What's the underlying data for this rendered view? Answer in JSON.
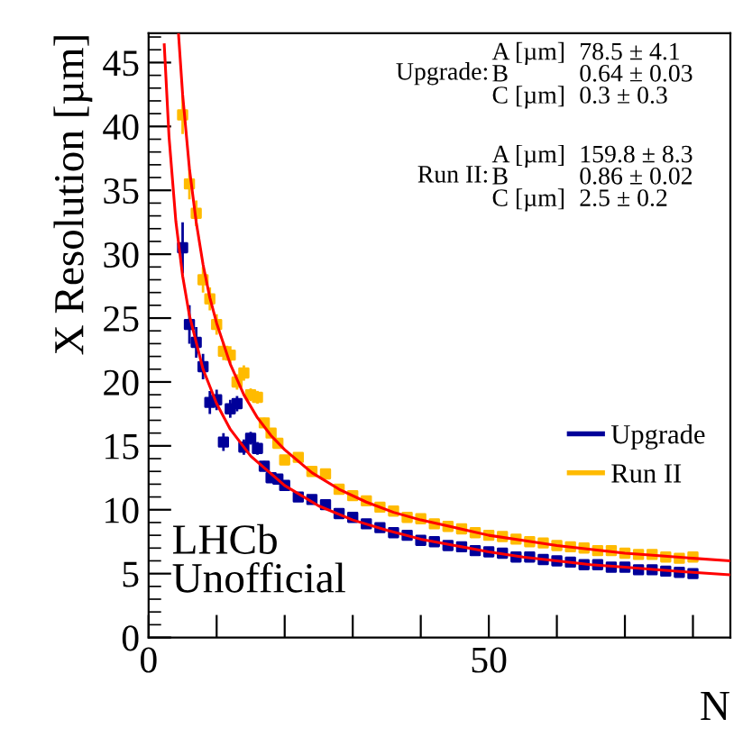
{
  "chart_data": {
    "type": "scatter",
    "xlabel": "N",
    "ylabel": "X Resolution [µm]",
    "xlim": [
      0,
      85.5
    ],
    "ylim": [
      0,
      47.3
    ],
    "xticks": [
      0,
      {
        "value": 10,
        "label": null
      },
      {
        "value": 20,
        "label": null
      },
      {
        "value": 30,
        "label": null
      },
      {
        "value": 40,
        "label": null
      },
      50,
      {
        "value": 60,
        "label": null
      },
      {
        "value": 70,
        "label": null
      },
      {
        "value": 80,
        "label": null
      }
    ],
    "yticks": [
      0,
      5,
      10,
      15,
      20,
      25,
      30,
      35,
      40,
      45
    ],
    "grid": false,
    "legend": "right",
    "marker": "square",
    "series": [
      {
        "name": "Upgrade",
        "color": "#000099",
        "x": [
          5,
          6,
          7,
          8,
          9,
          10,
          11,
          12,
          13,
          14,
          15,
          16,
          17,
          18,
          19,
          20,
          22,
          24,
          26,
          28,
          30,
          32,
          34,
          36,
          38,
          40,
          42,
          44,
          46,
          48,
          50,
          52,
          54,
          56,
          58,
          60,
          62,
          64,
          66,
          68,
          70,
          72,
          74,
          76,
          78,
          80
        ],
        "values": [
          30.5,
          24.5,
          23.1,
          21.2,
          18.4,
          18.6,
          15.3,
          17.9,
          18.3,
          14.9,
          15.6,
          14.8,
          13.4,
          12.5,
          12.4,
          11.9,
          11.0,
          10.8,
          10.4,
          9.7,
          9.4,
          8.9,
          8.6,
          8.2,
          8.0,
          7.6,
          7.5,
          7.2,
          7.1,
          6.8,
          6.7,
          6.6,
          6.3,
          6.3,
          6.1,
          6.0,
          5.9,
          5.7,
          5.7,
          5.5,
          5.5,
          5.3,
          5.3,
          5.2,
          5.1,
          5.0
        ],
        "errors": [
          2.0,
          1.5,
          1.2,
          1.0,
          0.9,
          0.8,
          0.7,
          0.7,
          0.6,
          0.6,
          0.5,
          0.5,
          0.4,
          0.4,
          0.4,
          0.3,
          0.3,
          0.3,
          0.3,
          0.2,
          0.2,
          0.2,
          0.2,
          0.2,
          0.2,
          0.2,
          0.2,
          0.2,
          0.2,
          0.2,
          0.2,
          0.2,
          0.2,
          0.2,
          0.2,
          0.2,
          0.2,
          0.2,
          0.2,
          0.2,
          0.2,
          0.2,
          0.2,
          0.2,
          0.2,
          0.2
        ]
      },
      {
        "name": "Run II",
        "color": "#ffbb00",
        "x": [
          5,
          6,
          7,
          8,
          9,
          10,
          11,
          12,
          13,
          14,
          15,
          16,
          17,
          18,
          19,
          20,
          22,
          24,
          26,
          28,
          30,
          32,
          34,
          36,
          38,
          40,
          42,
          44,
          46,
          48,
          50,
          52,
          54,
          56,
          58,
          60,
          62,
          64,
          66,
          68,
          70,
          72,
          74,
          76,
          78,
          80
        ],
        "values": [
          40.9,
          35.5,
          33.2,
          28.0,
          26.5,
          24.5,
          22.4,
          22.1,
          20.0,
          20.7,
          19.0,
          18.8,
          16.8,
          16.0,
          15.2,
          13.9,
          14.1,
          13.0,
          12.8,
          11.6,
          11.1,
          10.7,
          10.2,
          9.9,
          9.4,
          9.3,
          8.9,
          8.7,
          8.5,
          8.2,
          8.0,
          7.9,
          7.7,
          7.5,
          7.4,
          7.2,
          7.1,
          7.0,
          6.8,
          6.8,
          6.6,
          6.5,
          6.5,
          6.3,
          6.2,
          6.3
        ],
        "errors": [
          1.5,
          1.2,
          1.0,
          1.0,
          0.9,
          0.8,
          0.7,
          0.7,
          0.6,
          0.6,
          0.5,
          0.5,
          0.4,
          0.4,
          0.4,
          0.3,
          0.3,
          0.3,
          0.3,
          0.2,
          0.2,
          0.2,
          0.2,
          0.2,
          0.2,
          0.2,
          0.2,
          0.2,
          0.2,
          0.2,
          0.2,
          0.2,
          0.2,
          0.2,
          0.2,
          0.2,
          0.2,
          0.2,
          0.2,
          0.2,
          0.2,
          0.2,
          0.2,
          0.2,
          0.2,
          0.2
        ]
      },
      {
        "type": "line",
        "color": "#ff0000",
        "marker": "none",
        "x": [
          2.3,
          3,
          4,
          5,
          6,
          8,
          10,
          12,
          15,
          20,
          25,
          30,
          35,
          40,
          45,
          50,
          55,
          60,
          65,
          70,
          75,
          80,
          85.5
        ],
        "values": [
          46.4,
          39.2,
          32.6,
          28.3,
          25.2,
          21.0,
          18.3,
          16.3,
          14.2,
          11.9,
          10.3,
          9.2,
          8.4,
          7.7,
          7.2,
          6.7,
          6.3,
          6.0,
          5.7,
          5.5,
          5.3,
          5.1,
          4.9
        ]
      },
      {
        "type": "line",
        "color": "#ff0000",
        "marker": "none",
        "x": [
          4.4,
          5,
          6,
          7,
          8,
          9,
          10,
          12,
          14,
          16,
          18,
          20,
          24,
          28,
          32,
          36,
          40,
          45,
          50,
          55,
          60,
          65,
          70,
          75,
          80,
          85.5
        ],
        "values": [
          47.2,
          42.5,
          36.7,
          32.5,
          29.2,
          26.6,
          24.6,
          21.4,
          19.0,
          17.2,
          15.8,
          14.7,
          12.9,
          11.6,
          10.6,
          9.8,
          9.2,
          8.6,
          8.0,
          7.6,
          7.2,
          6.9,
          6.6,
          6.4,
          6.2,
          6.0
        ]
      }
    ],
    "annotations": [
      "Upgrade:",
      "A [µm]\nB\nC [µm]",
      "78.5 ± 4.1\n0.64 ± 0.03\n0.3 ± 0.3",
      "Run II:",
      "A [µm]\nB\nC [µm]",
      "159.8 ± 8.3\n0.86 ± 0.02\n2.5 ± 0.2",
      "LHCb\nUnofficial"
    ]
  }
}
